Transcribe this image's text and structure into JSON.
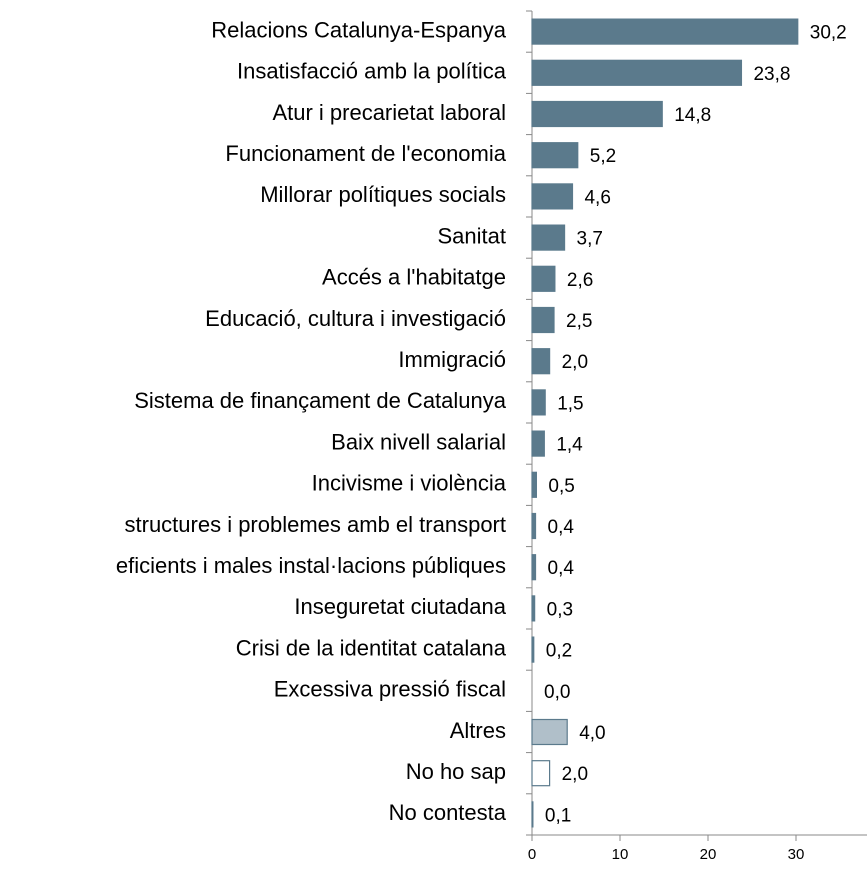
{
  "chart_data": {
    "type": "barh",
    "categories": [
      "Relacions Catalunya-Espanya",
      "Insatisfacció amb la política",
      "Atur i precarietat laboral",
      "Funcionament de l'economia",
      "Millorar polítiques socials",
      "Sanitat",
      "Accés a l'habitatge",
      "Educació, cultura i investigació",
      "Immigració",
      "Sistema de finançament de Catalunya",
      "Baix nivell salarial",
      "Incivisme i violència",
      "structures i problemes amb el transport",
      "eficients i males instal·lacions públiques",
      "Inseguretat ciutadana",
      "Crisi de la identitat catalana",
      "Excessiva pressió fiscal",
      "Altres",
      "No ho sap",
      "No contesta"
    ],
    "values": [
      30.2,
      23.8,
      14.8,
      5.2,
      4.6,
      3.7,
      2.6,
      2.5,
      2.0,
      1.5,
      1.4,
      0.5,
      0.4,
      0.4,
      0.3,
      0.2,
      0.0,
      4.0,
      2.0,
      0.1
    ],
    "value_labels": [
      "30,2",
      "23,8",
      "14,8",
      "5,2",
      "4,6",
      "3,7",
      "2,6",
      "2,5",
      "2,0",
      "1,5",
      "1,4",
      "0,5",
      "0,4",
      "0,4",
      "0,3",
      "0,2",
      "0,0",
      "4,0",
      "2,0",
      "0,1"
    ],
    "colors": [
      "#5b7a8c",
      "#5b7a8c",
      "#5b7a8c",
      "#5b7a8c",
      "#5b7a8c",
      "#5b7a8c",
      "#5b7a8c",
      "#5b7a8c",
      "#5b7a8c",
      "#5b7a8c",
      "#5b7a8c",
      "#5b7a8c",
      "#5b7a8c",
      "#5b7a8c",
      "#5b7a8c",
      "#5b7a8c",
      "#5b7a8c",
      "#b0bfc9",
      "#ffffff",
      "#ffffff"
    ],
    "edge_color": "#5b7a8c",
    "xlim": [
      0,
      40
    ],
    "xticks": [
      0,
      10,
      20,
      30
    ]
  }
}
